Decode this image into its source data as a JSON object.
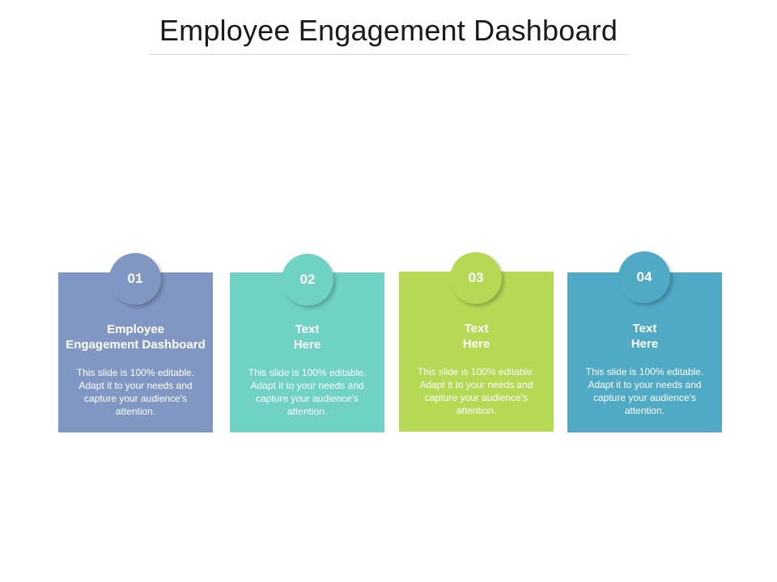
{
  "slide": {
    "title": "Employee Engagement Dashboard"
  },
  "cards": [
    {
      "number": "01",
      "title_line1": "Employee",
      "title_line2": "Engagement Dashboard",
      "body": "This slide is 100% editable. Adapt it to your needs and capture your audience's attention.",
      "color": "#8097c3"
    },
    {
      "number": "02",
      "title_line1": "Text",
      "title_line2": "Here",
      "body": "This slide is 100% editable. Adapt it to your needs and capture your audience's attention.",
      "color": "#70d1c5"
    },
    {
      "number": "03",
      "title_line1": "Text",
      "title_line2": "Here",
      "body": "This slide is 100% editable. Adapt it to your needs and capture your audience's attention.",
      "color": "#b5d955"
    },
    {
      "number": "04",
      "title_line1": "Text",
      "title_line2": "Here",
      "body": "This slide is 100% editable. Adapt it to your needs and capture your audience's attention.",
      "color": "#50a9c5"
    }
  ]
}
